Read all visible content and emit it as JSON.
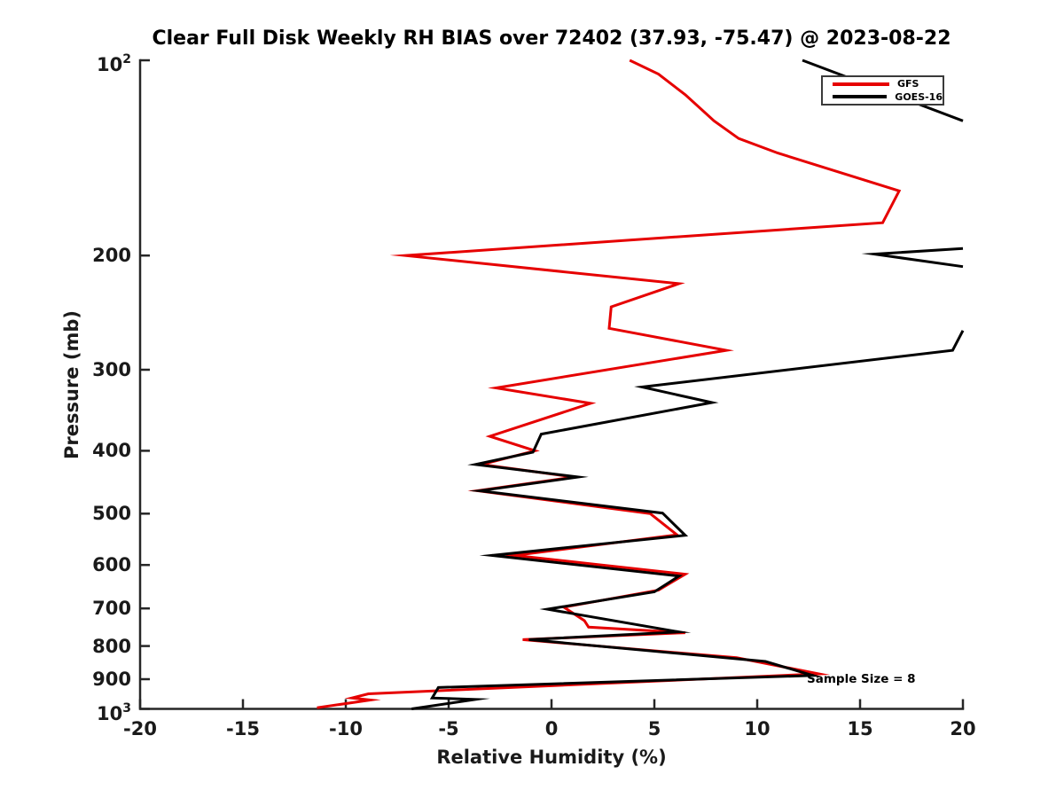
{
  "chart_data": {
    "type": "line",
    "title": "Clear Full Disk Weekly RH BIAS over 72402 (37.93, -75.47) @ 2023-08-22",
    "xlabel": "Relative Humidity (%)",
    "ylabel": "Pressure (mb)",
    "xlim": [
      -20,
      20
    ],
    "ylim": [
      100,
      1000
    ],
    "yscale": "log",
    "y_inverted": true,
    "grid": false,
    "axis_color": "#262626",
    "xticks": {
      "values": [
        -20,
        -15,
        -10,
        -5,
        0,
        5,
        10,
        15,
        20
      ],
      "labels": [
        "-20",
        "-15",
        "-10",
        "-5",
        "0",
        "5",
        "10",
        "15",
        "20"
      ]
    },
    "yticks": {
      "values": [
        100,
        200,
        300,
        400,
        500,
        600,
        700,
        800,
        900,
        1000
      ],
      "labels": [
        "10^2",
        "200",
        "300",
        "400",
        "500",
        "600",
        "700",
        "800",
        "900",
        "10^3"
      ]
    },
    "legend": {
      "position": "top-right"
    },
    "annotation": {
      "text": "Sample Size = 8",
      "rh": 12.4,
      "pressure": 899
    },
    "points_format": "[relative_humidity_bias_percent, pressure_mb]",
    "series": [
      {
        "name": "GFS",
        "color": "#e60000",
        "segments": [
          [
            [
              3.8,
              100
            ],
            [
              5.2,
              105
            ],
            [
              6.5,
              113
            ],
            [
              7.9,
              124
            ],
            [
              9.1,
              132
            ],
            [
              11.0,
              139
            ],
            [
              16.9,
              159
            ],
            [
              16.1,
              178
            ],
            [
              -7.1,
              200
            ],
            [
              6.2,
              221
            ],
            [
              2.9,
              240
            ],
            [
              2.8,
              259
            ],
            [
              8.5,
              280
            ],
            [
              -2.7,
              320
            ],
            [
              1.9,
              338
            ],
            [
              -3.0,
              380
            ],
            [
              -0.8,
              400
            ],
            [
              -3.4,
              420
            ],
            [
              1.1,
              439
            ],
            [
              -3.6,
              461
            ],
            [
              4.8,
              500
            ],
            [
              6.1,
              539
            ],
            [
              -1.8,
              580
            ],
            [
              6.5,
              620
            ],
            [
              5.2,
              656
            ],
            [
              0.6,
              697
            ],
            [
              1.6,
              731
            ],
            [
              1.8,
              748
            ],
            [
              6.5,
              763
            ],
            [
              -1.4,
              782
            ],
            [
              9.0,
              834
            ],
            [
              13.0,
              883
            ],
            [
              -8.9,
              948
            ],
            [
              -9.7,
              962
            ],
            [
              -8.8,
              969
            ],
            [
              -11.4,
              996
            ]
          ]
        ]
      },
      {
        "name": "GOES-16",
        "color": "#000000",
        "segments": [
          [
            [
              12.2,
              100
            ],
            [
              20,
              124
            ]
          ],
          [
            [
              20,
              195
            ],
            [
              15.7,
              199
            ],
            [
              20,
              208
            ]
          ],
          [
            [
              20,
              261
            ],
            [
              19.5,
              280
            ],
            [
              4.4,
              319
            ],
            [
              7.8,
              337
            ],
            [
              -0.5,
              377
            ],
            [
              -0.9,
              402
            ],
            [
              -3.7,
              420
            ],
            [
              1.3,
              439
            ],
            [
              -3.5,
              461
            ],
            [
              5.4,
              499
            ],
            [
              6.5,
              540
            ],
            [
              -2.9,
              580
            ],
            [
              6.2,
              624
            ],
            [
              5.0,
              660
            ],
            [
              -0.2,
              702
            ],
            [
              6.2,
              761
            ],
            [
              -1.1,
              782
            ],
            [
              10.4,
              845
            ],
            [
              12.7,
              888
            ],
            [
              -5.5,
              927
            ],
            [
              -5.8,
              962
            ],
            [
              -3.7,
              967
            ],
            [
              -6.8,
              1000
            ]
          ]
        ]
      }
    ]
  }
}
